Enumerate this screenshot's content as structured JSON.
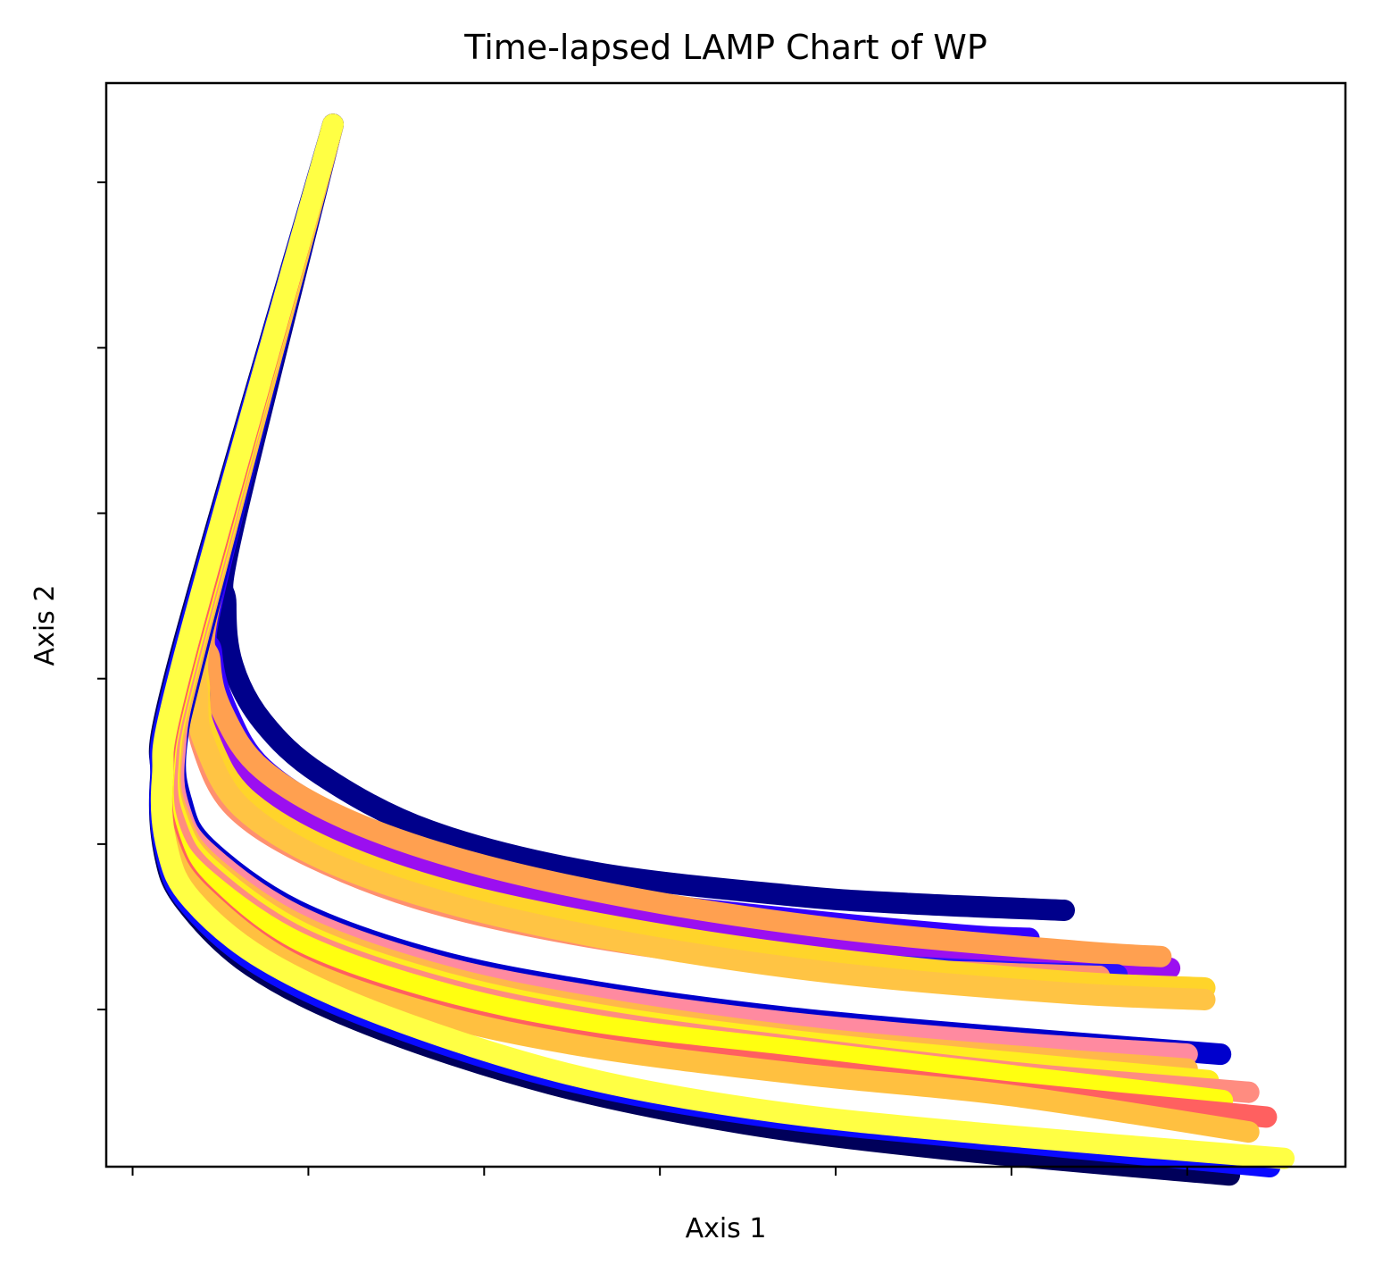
{
  "chart_data": {
    "type": "line",
    "title": "Time-lapsed LAMP Chart of WP",
    "xlabel": "Axis 1",
    "ylabel": "Axis 2",
    "xlim": [
      -0.15,
      6.9
    ],
    "ylim": [
      -0.95,
      5.6
    ],
    "x_ticks": [
      0,
      1,
      2,
      3,
      4,
      5,
      6
    ],
    "y_ticks": [
      0,
      1,
      2,
      3,
      4,
      5
    ],
    "tick_labels_visible": false,
    "grid": false,
    "legend": "none",
    "common_start": [
      1.14,
      5.35
    ],
    "series": [
      {
        "color": "#00008B",
        "points": [
          [
            0.57,
            2.9
          ],
          [
            0.53,
            2.45
          ],
          [
            0.57,
            2.08
          ],
          [
            0.74,
            1.74
          ],
          [
            1.07,
            1.42
          ],
          [
            1.69,
            1.08
          ],
          [
            2.62,
            0.83
          ],
          [
            3.74,
            0.69
          ],
          [
            4.42,
            0.64
          ],
          [
            5.3,
            0.6
          ]
        ]
      },
      {
        "color": "#3300FF",
        "points": [
          [
            0.48,
            2.6
          ],
          [
            0.45,
            2.15
          ],
          [
            0.54,
            1.8
          ],
          [
            0.74,
            1.46
          ],
          [
            1.2,
            1.15
          ],
          [
            1.89,
            0.88
          ],
          [
            2.78,
            0.67
          ],
          [
            3.74,
            0.55
          ],
          [
            4.72,
            0.45
          ],
          [
            5.1,
            0.43
          ]
        ]
      },
      {
        "color": "#9B0FF0",
        "points": [
          [
            0.46,
            2.6
          ],
          [
            0.42,
            2.05
          ],
          [
            0.5,
            1.73
          ],
          [
            0.7,
            1.38
          ],
          [
            1.18,
            1.08
          ],
          [
            1.95,
            0.8
          ],
          [
            2.95,
            0.57
          ],
          [
            4.12,
            0.4
          ],
          [
            5.3,
            0.28
          ],
          [
            5.9,
            0.25
          ]
        ]
      },
      {
        "color": "#FFA050",
        "points": [
          [
            0.47,
            2.6
          ],
          [
            0.44,
            2.1
          ],
          [
            0.52,
            1.78
          ],
          [
            0.74,
            1.45
          ],
          [
            1.24,
            1.14
          ],
          [
            2.0,
            0.87
          ],
          [
            3.02,
            0.64
          ],
          [
            4.15,
            0.47
          ],
          [
            5.4,
            0.35
          ],
          [
            5.85,
            0.32
          ]
        ]
      },
      {
        "color": "#2A10FF",
        "points": [
          [
            0.44,
            2.5
          ],
          [
            0.38,
            1.9
          ],
          [
            0.42,
            1.62
          ],
          [
            0.6,
            1.25
          ],
          [
            1.05,
            0.95
          ],
          [
            1.75,
            0.68
          ],
          [
            2.72,
            0.45
          ],
          [
            3.85,
            0.3
          ],
          [
            4.95,
            0.23
          ],
          [
            5.6,
            0.21
          ]
        ]
      },
      {
        "color": "#FF9070",
        "points": [
          [
            0.44,
            2.5
          ],
          [
            0.37,
            1.88
          ],
          [
            0.4,
            1.58
          ],
          [
            0.58,
            1.22
          ],
          [
            1.02,
            0.92
          ],
          [
            1.72,
            0.64
          ],
          [
            2.7,
            0.42
          ],
          [
            3.85,
            0.27
          ],
          [
            4.9,
            0.22
          ],
          [
            5.5,
            0.2
          ]
        ]
      },
      {
        "color": "#FFD42A",
        "points": [
          [
            0.45,
            2.55
          ],
          [
            0.38,
            1.92
          ],
          [
            0.44,
            1.62
          ],
          [
            0.64,
            1.28
          ],
          [
            1.12,
            0.97
          ],
          [
            1.86,
            0.7
          ],
          [
            2.86,
            0.48
          ],
          [
            4.02,
            0.3
          ],
          [
            5.3,
            0.17
          ],
          [
            6.1,
            0.13
          ]
        ]
      },
      {
        "color": "#FFC444",
        "points": [
          [
            0.44,
            2.5
          ],
          [
            0.37,
            1.88
          ],
          [
            0.42,
            1.58
          ],
          [
            0.62,
            1.22
          ],
          [
            1.1,
            0.9
          ],
          [
            1.84,
            0.63
          ],
          [
            2.84,
            0.4
          ],
          [
            4.0,
            0.22
          ],
          [
            5.3,
            0.1
          ],
          [
            6.1,
            0.06
          ]
        ]
      },
      {
        "color": "#0000CD",
        "points": [
          [
            0.4,
            2.3
          ],
          [
            0.25,
            1.6
          ],
          [
            0.28,
            1.25
          ],
          [
            0.42,
            0.98
          ],
          [
            0.93,
            0.6
          ],
          [
            1.72,
            0.3
          ],
          [
            2.62,
            0.11
          ],
          [
            3.74,
            -0.05
          ],
          [
            5.0,
            -0.17
          ],
          [
            6.19,
            -0.27
          ]
        ]
      },
      {
        "color": "#FF8AA0",
        "points": [
          [
            0.38,
            2.3
          ],
          [
            0.24,
            1.55
          ],
          [
            0.27,
            1.2
          ],
          [
            0.42,
            0.95
          ],
          [
            0.93,
            0.57
          ],
          [
            1.72,
            0.27
          ],
          [
            2.62,
            0.08
          ],
          [
            3.74,
            -0.08
          ],
          [
            5.0,
            -0.2
          ],
          [
            6.0,
            -0.27
          ]
        ]
      },
      {
        "color": "#FFB84A",
        "points": [
          [
            0.38,
            2.28
          ],
          [
            0.22,
            1.5
          ],
          [
            0.27,
            1.15
          ],
          [
            0.44,
            0.88
          ],
          [
            0.97,
            0.5
          ],
          [
            1.78,
            0.2
          ],
          [
            2.7,
            0.0
          ],
          [
            3.85,
            -0.17
          ],
          [
            5.0,
            -0.28
          ],
          [
            6.0,
            -0.36
          ]
        ]
      },
      {
        "color": "#FFEE20",
        "points": [
          [
            0.36,
            2.25
          ],
          [
            0.21,
            1.5
          ],
          [
            0.26,
            1.13
          ],
          [
            0.44,
            0.85
          ],
          [
            0.97,
            0.46
          ],
          [
            1.78,
            0.16
          ],
          [
            2.7,
            -0.04
          ],
          [
            3.85,
            -0.2
          ],
          [
            5.0,
            -0.32
          ],
          [
            6.12,
            -0.43
          ]
        ]
      },
      {
        "color": "#FF8C80",
        "points": [
          [
            0.34,
            2.2
          ],
          [
            0.2,
            1.47
          ],
          [
            0.25,
            1.1
          ],
          [
            0.43,
            0.82
          ],
          [
            0.96,
            0.43
          ],
          [
            1.77,
            0.13
          ],
          [
            2.68,
            -0.07
          ],
          [
            3.8,
            -0.23
          ],
          [
            5.0,
            -0.38
          ],
          [
            6.35,
            -0.5
          ]
        ]
      },
      {
        "color": "#FFFF10",
        "points": [
          [
            0.33,
            2.2
          ],
          [
            0.18,
            1.45
          ],
          [
            0.22,
            1.06
          ],
          [
            0.42,
            0.78
          ],
          [
            0.95,
            0.4
          ],
          [
            1.76,
            0.1
          ],
          [
            2.66,
            -0.1
          ],
          [
            3.8,
            -0.25
          ],
          [
            5.0,
            -0.4
          ],
          [
            6.2,
            -0.55
          ]
        ]
      },
      {
        "color": "#FF6060",
        "points": [
          [
            0.32,
            2.2
          ],
          [
            0.17,
            1.4
          ],
          [
            0.22,
            1.0
          ],
          [
            0.4,
            0.7
          ],
          [
            0.9,
            0.3
          ],
          [
            1.7,
            0.0
          ],
          [
            2.6,
            -0.2
          ],
          [
            3.8,
            -0.35
          ],
          [
            5.0,
            -0.5
          ],
          [
            6.45,
            -0.65
          ]
        ]
      },
      {
        "color": "#FFC040",
        "points": [
          [
            0.31,
            2.2
          ],
          [
            0.16,
            1.38
          ],
          [
            0.21,
            0.98
          ],
          [
            0.4,
            0.68
          ],
          [
            0.92,
            0.27
          ],
          [
            1.72,
            -0.03
          ],
          [
            2.62,
            -0.23
          ],
          [
            3.8,
            -0.39
          ],
          [
            5.0,
            -0.52
          ],
          [
            6.35,
            -0.74
          ]
        ]
      },
      {
        "color": "#00005A",
        "points": [
          [
            0.26,
            2.1
          ],
          [
            0.16,
            1.4
          ],
          [
            0.18,
            0.95
          ],
          [
            0.3,
            0.65
          ],
          [
            0.68,
            0.26
          ],
          [
            1.34,
            -0.09
          ],
          [
            2.38,
            -0.45
          ],
          [
            3.48,
            -0.69
          ],
          [
            4.68,
            -0.85
          ],
          [
            6.24,
            -1.0
          ]
        ]
      },
      {
        "color": "#0A0AFF",
        "points": [
          [
            0.27,
            2.1
          ],
          [
            0.16,
            1.38
          ],
          [
            0.19,
            0.94
          ],
          [
            0.32,
            0.64
          ],
          [
            0.72,
            0.27
          ],
          [
            1.4,
            -0.07
          ],
          [
            2.44,
            -0.42
          ],
          [
            3.56,
            -0.64
          ],
          [
            4.8,
            -0.78
          ],
          [
            6.47,
            -0.95
          ]
        ]
      },
      {
        "color": "#FFFF44",
        "points": [
          [
            0.29,
            2.12
          ],
          [
            0.17,
            1.4
          ],
          [
            0.2,
            0.96
          ],
          [
            0.34,
            0.66
          ],
          [
            0.75,
            0.3
          ],
          [
            1.44,
            -0.04
          ],
          [
            2.48,
            -0.39
          ],
          [
            3.6,
            -0.61
          ],
          [
            4.84,
            -0.75
          ],
          [
            6.55,
            -0.9
          ]
        ]
      }
    ]
  }
}
